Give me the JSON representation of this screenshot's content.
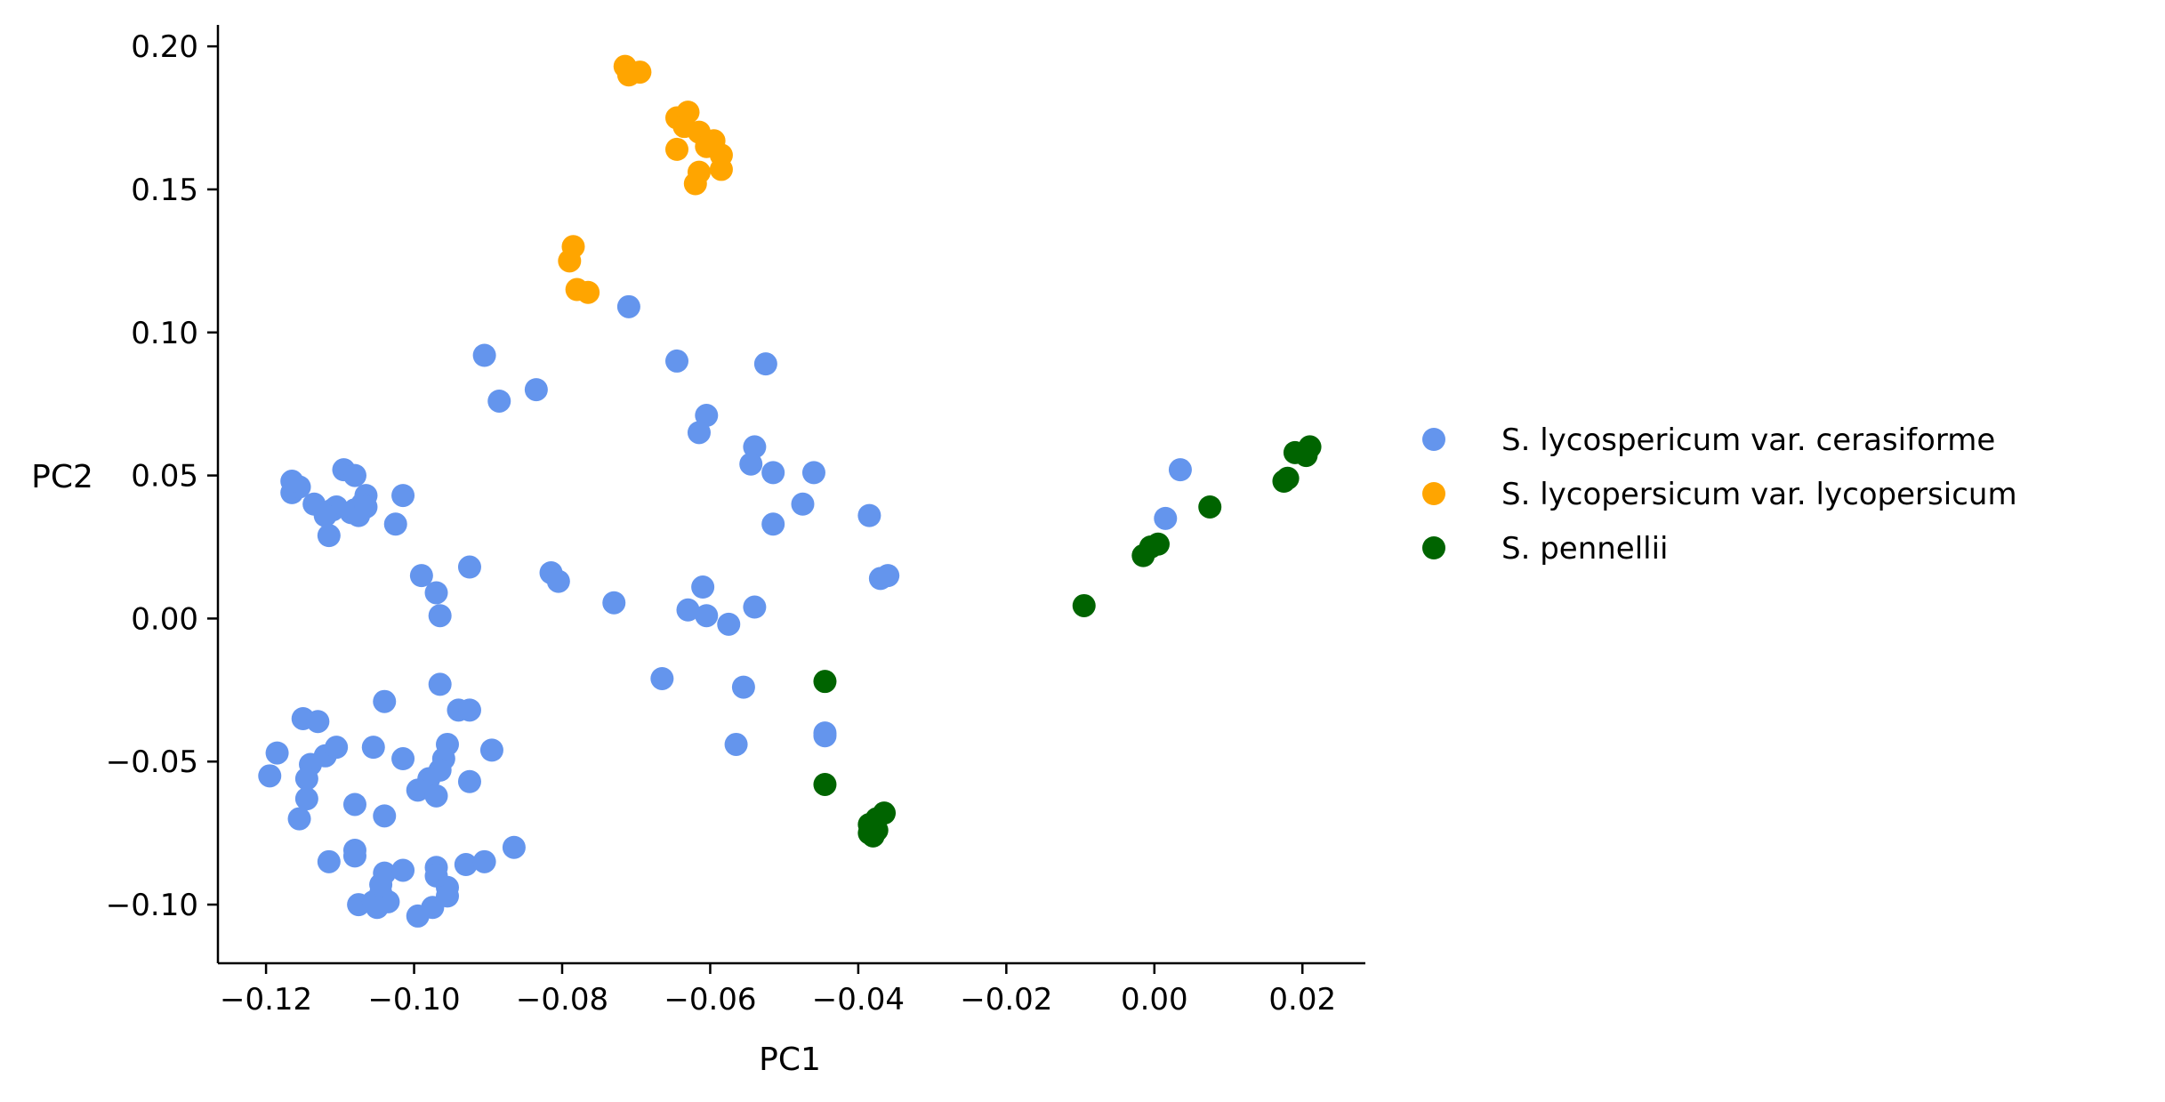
{
  "chart_data": {
    "type": "scatter",
    "xlabel": "PC1",
    "ylabel": "PC2",
    "xlim": [
      -0.1265,
      0.0285
    ],
    "ylim": [
      -0.1205,
      0.2075
    ],
    "xticks": [
      -0.12,
      -0.1,
      -0.08,
      -0.06,
      -0.04,
      -0.02,
      0.0,
      0.02
    ],
    "xtick_labels": [
      "−0.12",
      "−0.10",
      "−0.08",
      "−0.06",
      "−0.04",
      "−0.02",
      "0.00",
      "0.02"
    ],
    "yticks": [
      -0.1,
      -0.05,
      0.0,
      0.05,
      0.1,
      0.15,
      0.2
    ],
    "ytick_labels": [
      "−0.10",
      "−0.05",
      "0.00",
      "0.05",
      "0.10",
      "0.15",
      "0.20"
    ],
    "grid": false,
    "legend_position": "right",
    "series": [
      {
        "name": "S. lycospericum var. cerasiforme",
        "color": "#6495ED",
        "points": [
          [
            -0.0905,
            0.092
          ],
          [
            -0.0885,
            0.076
          ],
          [
            -0.0835,
            0.08
          ],
          [
            -0.071,
            0.109
          ],
          [
            -0.0645,
            0.09
          ],
          [
            -0.0605,
            0.071
          ],
          [
            -0.0615,
            0.065
          ],
          [
            -0.0525,
            0.089
          ],
          [
            -0.054,
            0.06
          ],
          [
            -0.0545,
            0.054
          ],
          [
            -0.0515,
            0.051
          ],
          [
            -0.046,
            0.051
          ],
          [
            -0.0475,
            0.04
          ],
          [
            -0.0515,
            0.033
          ],
          [
            -0.0385,
            0.036
          ],
          [
            -0.037,
            0.014
          ],
          [
            -0.036,
            0.015
          ],
          [
            -0.061,
            0.011
          ],
          [
            -0.063,
            0.003
          ],
          [
            -0.0605,
            0.001
          ],
          [
            -0.0575,
            -0.002
          ],
          [
            -0.054,
            0.004
          ],
          [
            -0.073,
            0.0055
          ],
          [
            -0.0815,
            0.016
          ],
          [
            -0.0805,
            0.013
          ],
          [
            -0.0925,
            0.018
          ],
          [
            -0.099,
            0.015
          ],
          [
            -0.097,
            0.009
          ],
          [
            -0.0965,
            0.001
          ],
          [
            -0.0665,
            -0.021
          ],
          [
            -0.0555,
            -0.024
          ],
          [
            -0.0445,
            -0.04
          ],
          [
            -0.0445,
            -0.041
          ],
          [
            -0.0565,
            -0.044
          ],
          [
            -0.1165,
            0.044
          ],
          [
            -0.1155,
            0.046
          ],
          [
            -0.1165,
            0.048
          ],
          [
            -0.1095,
            0.052
          ],
          [
            -0.108,
            0.05
          ],
          [
            -0.1065,
            0.043
          ],
          [
            -0.107,
            0.04
          ],
          [
            -0.108,
            0.038
          ],
          [
            -0.111,
            0.038
          ],
          [
            -0.1135,
            0.04
          ],
          [
            -0.1105,
            0.039
          ],
          [
            -0.1085,
            0.037
          ],
          [
            -0.1075,
            0.036
          ],
          [
            -0.1065,
            0.039
          ],
          [
            -0.112,
            0.036
          ],
          [
            -0.1115,
            0.029
          ],
          [
            -0.1015,
            0.043
          ],
          [
            -0.1025,
            0.033
          ],
          [
            -0.1185,
            -0.047
          ],
          [
            -0.1195,
            -0.055
          ],
          [
            -0.115,
            -0.035
          ],
          [
            -0.113,
            -0.036
          ],
          [
            -0.114,
            -0.051
          ],
          [
            -0.1145,
            -0.056
          ],
          [
            -0.112,
            -0.048
          ],
          [
            -0.1105,
            -0.045
          ],
          [
            -0.1145,
            -0.063
          ],
          [
            -0.1155,
            -0.07
          ],
          [
            -0.108,
            -0.065
          ],
          [
            -0.104,
            -0.029
          ],
          [
            -0.1055,
            -0.045
          ],
          [
            -0.1015,
            -0.049
          ],
          [
            -0.0965,
            -0.023
          ],
          [
            -0.094,
            -0.032
          ],
          [
            -0.0925,
            -0.032
          ],
          [
            -0.0955,
            -0.044
          ],
          [
            -0.0895,
            -0.046
          ],
          [
            -0.096,
            -0.049
          ],
          [
            -0.0965,
            -0.053
          ],
          [
            -0.098,
            -0.056
          ],
          [
            -0.0995,
            -0.06
          ],
          [
            -0.097,
            -0.062
          ],
          [
            -0.0925,
            -0.057
          ],
          [
            -0.104,
            -0.069
          ],
          [
            -0.1115,
            -0.085
          ],
          [
            -0.108,
            -0.081
          ],
          [
            -0.108,
            -0.083
          ],
          [
            -0.104,
            -0.089
          ],
          [
            -0.1015,
            -0.088
          ],
          [
            -0.097,
            -0.087
          ],
          [
            -0.097,
            -0.09
          ],
          [
            -0.0955,
            -0.094
          ],
          [
            -0.0955,
            -0.097
          ],
          [
            -0.093,
            -0.086
          ],
          [
            -0.0905,
            -0.085
          ],
          [
            -0.0865,
            -0.08
          ],
          [
            -0.1075,
            -0.1
          ],
          [
            -0.1055,
            -0.099
          ],
          [
            -0.1045,
            -0.096
          ],
          [
            -0.1035,
            -0.099
          ],
          [
            -0.105,
            -0.101
          ],
          [
            -0.0995,
            -0.104
          ],
          [
            -0.0975,
            -0.101
          ],
          [
            -0.1045,
            -0.093
          ],
          [
            0.0035,
            0.052
          ],
          [
            0.0015,
            0.035
          ]
        ]
      },
      {
        "name": "S. lycopersicum var. lycopersicum",
        "color": "#FFA500",
        "points": [
          [
            -0.0715,
            0.193
          ],
          [
            -0.071,
            0.19
          ],
          [
            -0.0695,
            0.191
          ],
          [
            -0.0645,
            0.175
          ],
          [
            -0.063,
            0.177
          ],
          [
            -0.0635,
            0.172
          ],
          [
            -0.0615,
            0.17
          ],
          [
            -0.0595,
            0.167
          ],
          [
            -0.0605,
            0.165
          ],
          [
            -0.0585,
            0.162
          ],
          [
            -0.0585,
            0.157
          ],
          [
            -0.0615,
            0.156
          ],
          [
            -0.062,
            0.152
          ],
          [
            -0.0645,
            0.164
          ],
          [
            -0.0785,
            0.13
          ],
          [
            -0.079,
            0.125
          ],
          [
            -0.078,
            0.115
          ],
          [
            -0.0765,
            0.114
          ]
        ]
      },
      {
        "name": "S. pennellii",
        "color": "#006400",
        "points": [
          [
            -0.0095,
            0.0045
          ],
          [
            -0.0015,
            0.022
          ],
          [
            -0.0005,
            0.025
          ],
          [
            0.0005,
            0.026
          ],
          [
            0.0075,
            0.039
          ],
          [
            0.0175,
            0.048
          ],
          [
            0.018,
            0.049
          ],
          [
            0.019,
            0.058
          ],
          [
            0.0205,
            0.058
          ],
          [
            0.021,
            0.06
          ],
          [
            0.0205,
            0.057
          ],
          [
            -0.0445,
            -0.022
          ],
          [
            -0.0445,
            -0.058
          ],
          [
            -0.0385,
            -0.072
          ],
          [
            -0.0375,
            -0.07
          ],
          [
            -0.0385,
            -0.075
          ],
          [
            -0.0375,
            -0.074
          ],
          [
            -0.0365,
            -0.068
          ],
          [
            -0.038,
            -0.076
          ]
        ]
      }
    ]
  }
}
